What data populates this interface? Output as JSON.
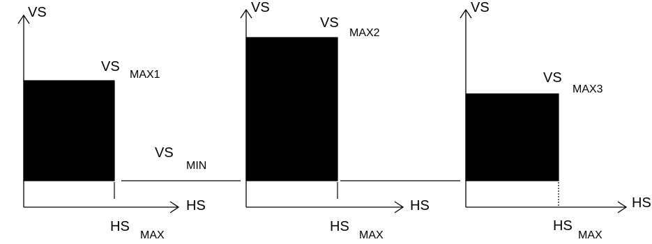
{
  "labels": {
    "vs": "VS",
    "hs": "HS",
    "vs_min_main": "VS",
    "vs_min_sub": "MIN",
    "hs_max_main": "HS",
    "hs_max_sub": "MAX"
  },
  "panels": [
    {
      "level_main": "VS",
      "level_sub": "MAX1",
      "hs_axis": "HS",
      "vs_axis": "VS",
      "hs_max_main": "HS",
      "hs_max_sub": "MAX"
    },
    {
      "level_main": "VS",
      "level_sub": "MAX2",
      "hs_axis": "HS",
      "vs_axis": "VS",
      "hs_max_main": "HS",
      "hs_max_sub": "MAX"
    },
    {
      "level_main": "VS",
      "level_sub": "MAX3",
      "hs_axis": "HS",
      "vs_axis": "VS",
      "hs_max_main": "HS",
      "hs_max_sub": "MAX"
    }
  ],
  "between": {
    "vs_min_main": "VS",
    "vs_min_sub": "MIN"
  },
  "colors": {
    "ink": "#000000",
    "background": "#ffffff"
  }
}
